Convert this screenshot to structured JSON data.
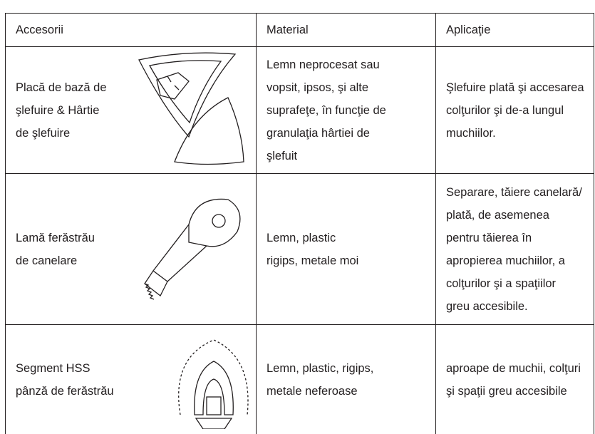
{
  "table": {
    "header": [
      "Accesorii",
      "Material",
      "Aplicaţie"
    ],
    "rows": [
      {
        "accessory": [
          "Placă de bază de",
          "şlefuire & Hârtie",
          "de şlefuire"
        ],
        "material": [
          "Lemn neprocesat sau",
          "vopsit, ipsos, şi alte",
          "suprafeţe, în funcţie de",
          "granulaţia hârtiei de",
          "şlefuit"
        ],
        "application": [
          "Şlefuire plată şi accesarea",
          "colţurilor şi de-a lungul",
          "muchiilor."
        ]
      },
      {
        "accessory": [
          "Lamă ferăstrău",
          "de canelare"
        ],
        "material": [
          "Lemn, plastic",
          "rigips, metale moi"
        ],
        "application": [
          "Separare, tăiere canelară/",
          "plată, de asemenea",
          "pentru tăierea în",
          "apropierea muchiilor, a",
          "colţurilor şi a spaţiilor",
          "greu accesibile."
        ]
      },
      {
        "accessory": [
          "Segment HSS",
          "pânză de ferăstrău"
        ],
        "material": [
          "Lemn, plastic, rigips,",
          "metale neferoase"
        ],
        "application": [
          "aproape de muchii, colţuri",
          "şi spaţii greu accesibile"
        ]
      }
    ]
  }
}
